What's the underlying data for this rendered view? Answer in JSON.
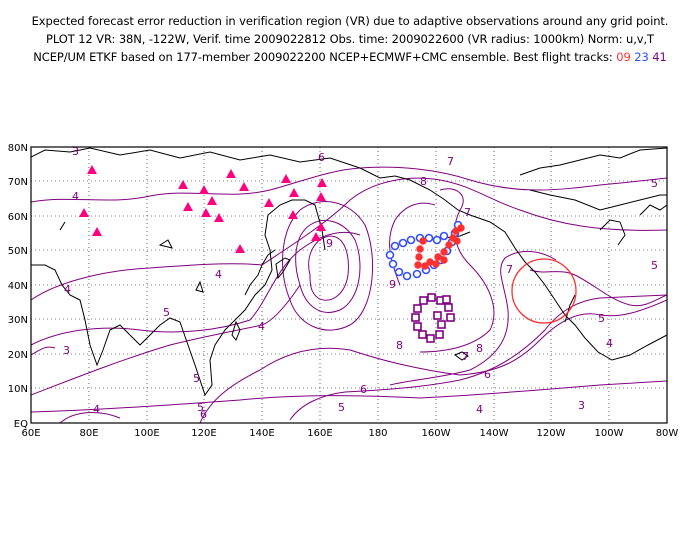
{
  "header": {
    "line1": "Expected forecast error reduction in verification region (VR) due to adaptive observations around any grid point.",
    "line2": "PLOT 12 VR: 38N, -122W, Verif. time 2009022812 Obs. time: 2009022600 (VR radius: 1000km) Norm: u,v,T",
    "line3_prefix": "NCEP/UM ETKF based on 177-member 2009022200 NCEP+ECMWF+CMC ensemble. Best flight tracks:",
    "tracks": [
      {
        "label": "09",
        "color": "#ff3030"
      },
      {
        "label": "23",
        "color": "#3050ff"
      },
      {
        "label": "41",
        "color": "#800080"
      }
    ]
  },
  "axes": {
    "x_ticks": [
      "60E",
      "80E",
      "100E",
      "120E",
      "140E",
      "160E",
      "180",
      "160W",
      "140W",
      "120W",
      "100W",
      "80W"
    ],
    "y_ticks": [
      "EQ",
      "10N",
      "20N",
      "30N",
      "40N",
      "50N",
      "60N",
      "70N",
      "80N"
    ]
  },
  "contour_labels": [
    "3",
    "4",
    "4",
    "4",
    "4",
    "4",
    "5",
    "5",
    "5",
    "5",
    "5",
    "6",
    "6",
    "6",
    "6",
    "7",
    "7",
    "7",
    "8",
    "8",
    "8",
    "9",
    "9",
    "4",
    "3",
    "4",
    "3",
    "5",
    "5",
    "7"
  ],
  "colors": {
    "contour": "#800080",
    "coast": "#000000",
    "grid": "#000000",
    "obs_sites": "#ff0080",
    "vr_circle": "#ff3030",
    "track_09": "#ff3030",
    "track_23": "#3050ff",
    "track_41": "#800080"
  },
  "verification_region": {
    "lat": 38,
    "lon": -122,
    "radius_km": 1000
  }
}
